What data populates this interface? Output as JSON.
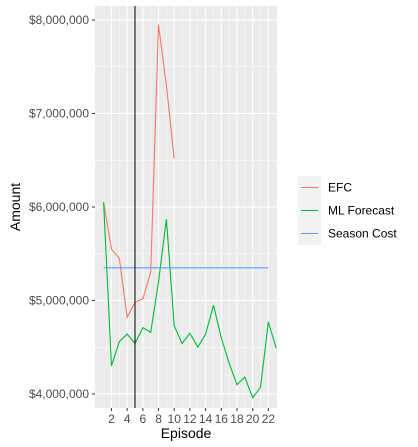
{
  "chart_data": {
    "type": "line",
    "xlabel": "Episode",
    "ylabel": "Amount",
    "x_ticks": [
      2,
      4,
      6,
      8,
      10,
      12,
      14,
      16,
      18,
      20,
      22
    ],
    "x_tick_labels": [
      "2",
      "4",
      "6",
      "8",
      "10",
      "12",
      "14",
      "16",
      "18",
      "20",
      "22"
    ],
    "y_ticks": [
      4000000,
      5000000,
      6000000,
      7000000,
      8000000
    ],
    "y_tick_labels": [
      "$4,000,000",
      "$5,000,000",
      "$6,000,000",
      "$7,000,000",
      "$8,000,000"
    ],
    "xlim": [
      -0.1,
      23.1
    ],
    "ylim": [
      3850000,
      8150000
    ],
    "vline_x": 5,
    "grid": true,
    "legend_position": "right",
    "series": [
      {
        "name": "EFC",
        "color": "#F8766D",
        "x": [
          1,
          2,
          3,
          4,
          5,
          6,
          7,
          8,
          9,
          10
        ],
        "y": [
          6050000,
          5550000,
          5450000,
          4820000,
          4980000,
          5020000,
          5300000,
          7950000,
          7300000,
          6520000
        ]
      },
      {
        "name": "ML Forecast",
        "color": "#00BA38",
        "x": [
          1,
          2,
          3,
          4,
          5,
          6,
          7,
          8,
          9,
          10,
          11,
          12,
          13,
          14,
          15,
          16,
          17,
          18,
          19,
          20,
          21,
          22,
          23
        ],
        "y": [
          6050000,
          4300000,
          4560000,
          4640000,
          4540000,
          4710000,
          4660000,
          5200000,
          5870000,
          4730000,
          4540000,
          4650000,
          4500000,
          4640000,
          4950000,
          4600000,
          4330000,
          4100000,
          4180000,
          3960000,
          4070000,
          4770000,
          4490000
        ]
      },
      {
        "name": "Season Cost",
        "color": "#619CFF",
        "x": [
          1,
          22
        ],
        "y": [
          5350000,
          5350000
        ]
      }
    ]
  }
}
